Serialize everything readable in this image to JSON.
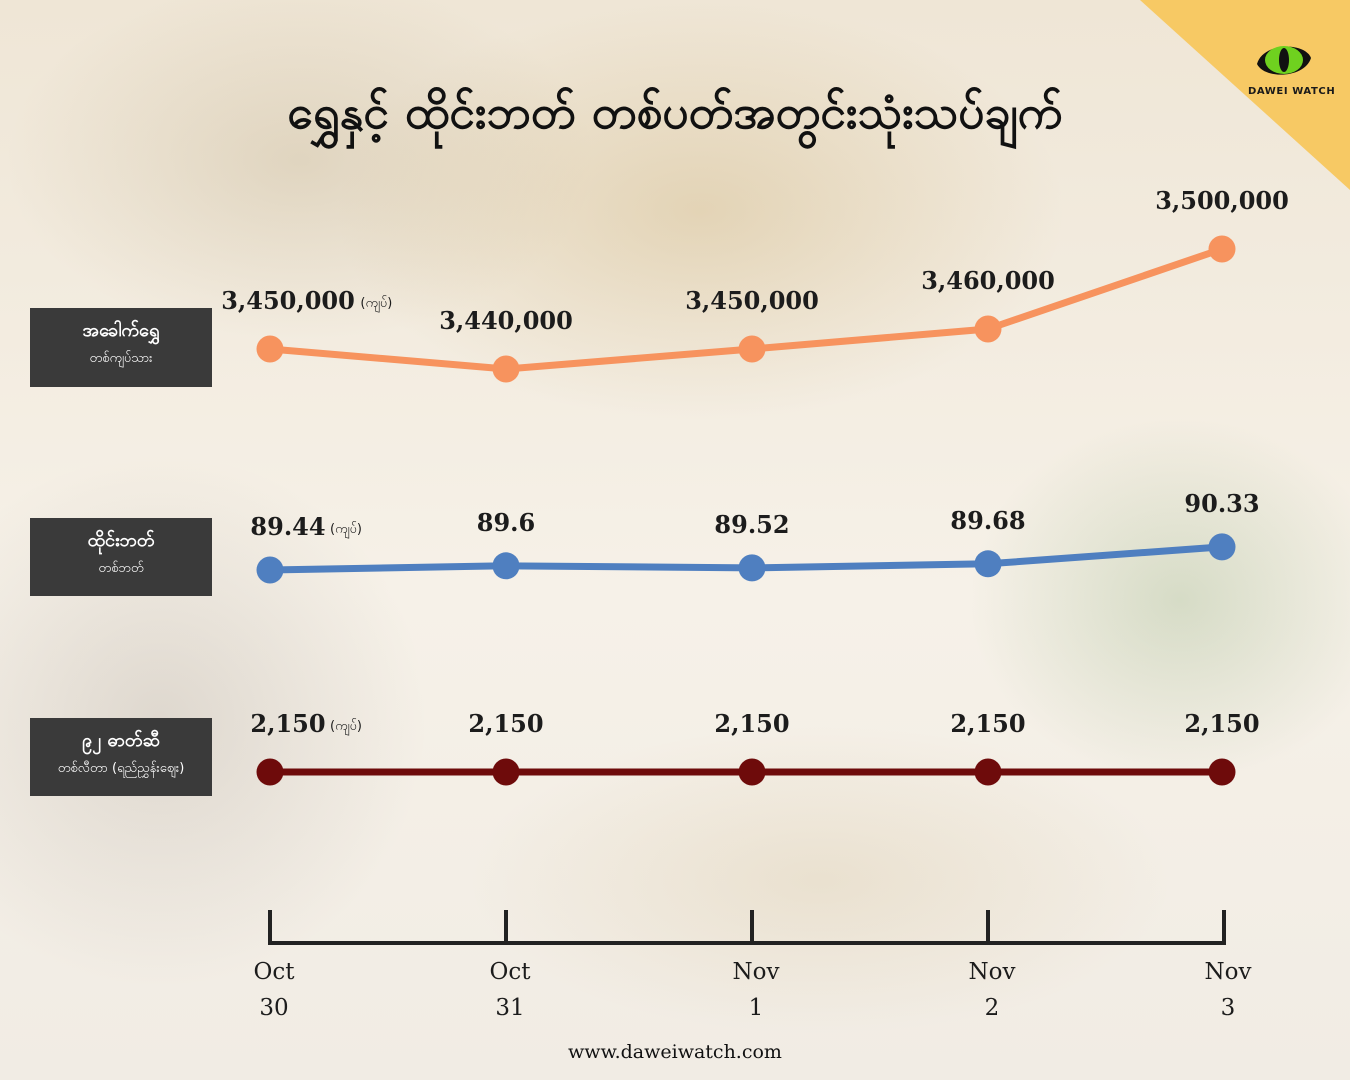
{
  "title": "ရွှေနှင့် ထိုင်းဘတ် တစ်ပတ်အတွင်းသုံးသပ်ချက်",
  "logo": {
    "text": "DAWEI WATCH",
    "icon": "green-eye-icon"
  },
  "footer": "www.daweiwatch.com",
  "rows": [
    {
      "name": "အခေါက်ရွှေ",
      "sub": "တစ်ကျပ်သား",
      "color": "#f7935e"
    },
    {
      "name": "ထိုင်းဘတ်",
      "sub": "တစ်ဘတ်",
      "color": "#4f7fc0"
    },
    {
      "name": "၉၂ ဓာတ်ဆီ",
      "sub": "တစ်လီတာ (ရည်ညွှန်းဈေး)",
      "color": "#6e0b0b"
    }
  ],
  "chart_data": {
    "type": "line",
    "categories": [
      "Oct 30",
      "Oct 31",
      "Nov 1",
      "Nov 2",
      "Nov 3"
    ],
    "axis_labels": [
      [
        "Oct",
        "30"
      ],
      [
        "Oct",
        "31"
      ],
      [
        "Nov",
        "1"
      ],
      [
        "Nov",
        "2"
      ],
      [
        "Nov",
        "3"
      ]
    ],
    "unit_label": "(ကျပ်)",
    "series": [
      {
        "name": "အခေါက်ရွှေ",
        "values": [
          3450000,
          3440000,
          3450000,
          3460000,
          3500000
        ],
        "labels": [
          "3,450,000",
          "3,440,000",
          "3,450,000",
          "3,460,000",
          "3,500,000"
        ],
        "color": "#f7935e"
      },
      {
        "name": "ထိုင်းဘတ်",
        "values": [
          89.44,
          89.6,
          89.52,
          89.68,
          90.33
        ],
        "labels": [
          "89.44",
          "89.6",
          "89.52",
          "89.68",
          "90.33"
        ],
        "color": "#4f7fc0"
      },
      {
        "name": "၉၂ ဓာတ်ဆီ",
        "values": [
          2150,
          2150,
          2150,
          2150,
          2150
        ],
        "labels": [
          "2,150",
          "2,150",
          "2,150",
          "2,150",
          "2,150"
        ],
        "color": "#6e0b0b"
      }
    ]
  }
}
